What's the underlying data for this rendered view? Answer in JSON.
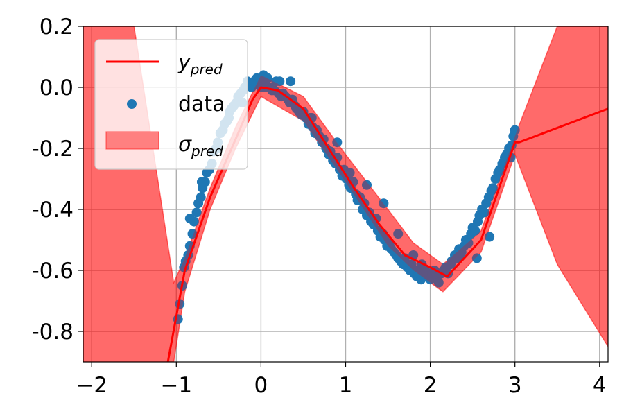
{
  "chart_data": {
    "type": "scatter",
    "title": "",
    "xlabel": "",
    "ylabel": "",
    "xlim": [
      -2.1,
      4.1
    ],
    "ylim": [
      -0.9,
      0.2
    ],
    "grid": true,
    "legend_position": "top-left",
    "x_ticks": [
      -2,
      -1,
      0,
      1,
      2,
      3,
      4
    ],
    "x_tick_labels": [
      "−2",
      "−1",
      "0",
      "1",
      "2",
      "3",
      "4"
    ],
    "y_ticks": [
      0.2,
      0.0,
      -0.2,
      -0.4,
      -0.6,
      -0.8
    ],
    "y_tick_labels": [
      "0.2",
      "0.0",
      "-0.2",
      "-0.4",
      "-0.6",
      "-0.8"
    ],
    "legend": [
      {
        "key": "y_pred",
        "base": "y",
        "sub": "pred",
        "kind": "line"
      },
      {
        "key": "data",
        "label": "data",
        "kind": "marker"
      },
      {
        "key": "sigma_pred",
        "base": "σ",
        "sub": "pred",
        "kind": "patch"
      }
    ],
    "series": [
      {
        "name": "y_pred",
        "kind": "line",
        "color": "#ff0000",
        "x": [
          -1.1,
          -0.9,
          -0.6,
          -0.3,
          -0.1,
          0.0,
          0.2,
          0.5,
          0.8,
          1.1,
          1.4,
          1.7,
          2.0,
          2.2,
          2.6,
          3.0,
          3.05,
          4.1
        ],
        "y": [
          -0.9,
          -0.6,
          -0.36,
          -0.17,
          -0.04,
          0.0,
          -0.01,
          -0.07,
          -0.2,
          -0.33,
          -0.45,
          -0.55,
          -0.59,
          -0.62,
          -0.5,
          -0.18,
          -0.18,
          -0.07
        ]
      },
      {
        "name": "sigma_pred",
        "kind": "band",
        "color": "#ff0000",
        "opacity": 0.42,
        "x": [
          -2.1,
          -1.5,
          -1.03,
          -0.9,
          -0.6,
          -0.3,
          0.0,
          0.5,
          1.0,
          1.5,
          1.8,
          2.15,
          2.6,
          3.0,
          3.5,
          4.1
        ],
        "upper": [
          0.2,
          0.2,
          -0.64,
          -0.56,
          -0.33,
          -0.13,
          0.04,
          -0.03,
          -0.22,
          -0.4,
          -0.51,
          -0.58,
          -0.47,
          -0.16,
          0.2,
          0.2
        ],
        "lower": [
          -0.9,
          -0.9,
          -0.9,
          -0.67,
          -0.4,
          -0.2,
          -0.03,
          -0.11,
          -0.31,
          -0.52,
          -0.6,
          -0.67,
          -0.54,
          -0.22,
          -0.58,
          -0.85
        ]
      },
      {
        "name": "data",
        "kind": "scatter",
        "color": "#1f77b4",
        "x": [
          -0.98,
          -0.96,
          -0.93,
          -0.91,
          -0.89,
          -0.86,
          -0.84,
          -0.81,
          -0.79,
          -0.76,
          -0.74,
          -0.71,
          -0.69,
          -0.66,
          -0.64,
          -0.61,
          -0.58,
          -0.56,
          -0.53,
          -0.51,
          -0.48,
          -0.45,
          -0.43,
          -0.4,
          -0.37,
          -0.35,
          -0.32,
          -0.29,
          -0.27,
          -0.24,
          -0.21,
          -0.19,
          -0.16,
          -0.13,
          -0.11,
          -0.08,
          -0.05,
          -0.03,
          0.0,
          0.03,
          0.05,
          0.08,
          0.1,
          0.13,
          0.16,
          0.18,
          0.21,
          0.24,
          0.26,
          0.29,
          0.32,
          0.34,
          0.37,
          0.4,
          0.42,
          0.45,
          0.48,
          0.5,
          0.53,
          0.56,
          0.58,
          0.61,
          0.64,
          0.66,
          0.69,
          0.72,
          0.74,
          0.77,
          0.8,
          0.82,
          0.85,
          0.88,
          0.9,
          0.93,
          0.96,
          0.98,
          1.01,
          1.04,
          1.06,
          1.09,
          1.12,
          1.14,
          1.17,
          1.2,
          1.22,
          1.25,
          1.28,
          1.3,
          1.33,
          1.36,
          1.38,
          1.41,
          1.44,
          1.46,
          1.49,
          1.52,
          1.54,
          1.57,
          1.6,
          1.62,
          1.65,
          1.68,
          1.7,
          1.73,
          1.76,
          1.78,
          1.81,
          1.84,
          1.86,
          1.89,
          1.92,
          1.94,
          1.97,
          2.0,
          2.02,
          2.05,
          2.08,
          2.1,
          2.13,
          2.16,
          2.18,
          2.21,
          2.24,
          2.26,
          2.29,
          2.32,
          2.34,
          2.37,
          2.4,
          2.42,
          2.45,
          2.48,
          2.5,
          2.53,
          2.56,
          2.58,
          2.61,
          2.64,
          2.66,
          2.69,
          2.72,
          2.74,
          2.77,
          2.8,
          2.82,
          2.85,
          2.88,
          2.9,
          2.93,
          2.96,
          2.98,
          -0.84,
          -0.7,
          -0.52,
          -0.38,
          -0.22,
          -0.1,
          0.05,
          0.22,
          0.35,
          0.6,
          0.9,
          1.05,
          1.25,
          1.45,
          1.62,
          1.8,
          1.9,
          2.05,
          2.25,
          2.35,
          2.55,
          2.7,
          2.95,
          3.0
        ],
        "y": [
          -0.76,
          -0.71,
          -0.65,
          -0.59,
          -0.57,
          -0.55,
          -0.52,
          -0.48,
          -0.44,
          -0.41,
          -0.38,
          -0.36,
          -0.33,
          -0.31,
          -0.28,
          -0.27,
          -0.25,
          -0.21,
          -0.2,
          -0.18,
          -0.15,
          -0.14,
          -0.12,
          -0.11,
          -0.08,
          -0.07,
          -0.06,
          -0.05,
          -0.03,
          -0.02,
          -0.01,
          0.0,
          0.02,
          0.01,
          0.0,
          0.02,
          0.03,
          0.01,
          0.0,
          0.04,
          0.02,
          0.03,
          0.0,
          -0.01,
          -0.01,
          0.02,
          -0.02,
          -0.03,
          -0.02,
          -0.03,
          -0.04,
          -0.05,
          -0.04,
          -0.06,
          -0.07,
          -0.08,
          -0.09,
          -0.08,
          -0.1,
          -0.12,
          -0.1,
          -0.13,
          -0.15,
          -0.14,
          -0.16,
          -0.18,
          -0.17,
          -0.2,
          -0.22,
          -0.21,
          -0.24,
          -0.25,
          -0.23,
          -0.27,
          -0.29,
          -0.27,
          -0.3,
          -0.32,
          -0.33,
          -0.31,
          -0.35,
          -0.37,
          -0.36,
          -0.4,
          -0.38,
          -0.42,
          -0.41,
          -0.44,
          -0.45,
          -0.43,
          -0.47,
          -0.49,
          -0.48,
          -0.5,
          -0.52,
          -0.51,
          -0.53,
          -0.54,
          -0.55,
          -0.56,
          -0.57,
          -0.58,
          -0.56,
          -0.59,
          -0.6,
          -0.58,
          -0.61,
          -0.62,
          -0.6,
          -0.63,
          -0.61,
          -0.6,
          -0.62,
          -0.63,
          -0.61,
          -0.6,
          -0.62,
          -0.64,
          -0.61,
          -0.6,
          -0.59,
          -0.61,
          -0.58,
          -0.57,
          -0.55,
          -0.56,
          -0.53,
          -0.54,
          -0.52,
          -0.5,
          -0.51,
          -0.48,
          -0.46,
          -0.47,
          -0.44,
          -0.42,
          -0.4,
          -0.41,
          -0.38,
          -0.36,
          -0.34,
          -0.33,
          -0.3,
          -0.28,
          -0.27,
          -0.25,
          -0.23,
          -0.22,
          -0.2,
          -0.19,
          -0.16,
          -0.43,
          -0.31,
          -0.2,
          -0.1,
          -0.05,
          0.01,
          0.0,
          0.02,
          0.02,
          -0.1,
          -0.18,
          -0.28,
          -0.32,
          -0.38,
          -0.48,
          -0.55,
          -0.58,
          -0.6,
          -0.57,
          -0.55,
          -0.56,
          -0.49,
          -0.23,
          -0.14
        ]
      }
    ]
  }
}
